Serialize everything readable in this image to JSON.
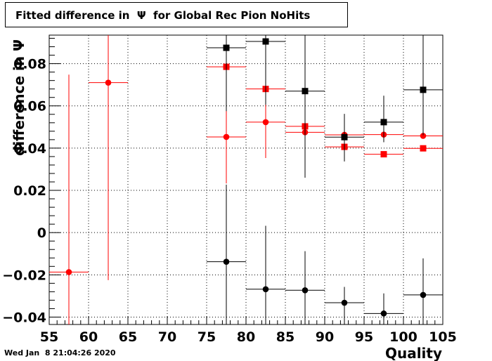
{
  "chart_data": {
    "type": "scatter",
    "title": "Fitted difference in  Ψ  for Global Rec Pion NoHits",
    "xlabel": "Quality",
    "ylabel": "difference in  Ψ",
    "xlim": [
      55,
      105
    ],
    "ylim": [
      -0.0435,
      0.0935
    ],
    "x_ticks": [
      55,
      60,
      65,
      70,
      75,
      80,
      85,
      90,
      95,
      100,
      105
    ],
    "x_tick_labels": [
      "55",
      "60",
      "65",
      "70",
      "75",
      "80",
      "85",
      "90",
      "95",
      "100",
      "105"
    ],
    "y_ticks": [
      -0.04,
      -0.02,
      0,
      0.02,
      0.04,
      0.06,
      0.08
    ],
    "y_tick_labels": [
      "−0.04",
      "−0.02",
      "0",
      "0.02",
      "0.04",
      "0.06",
      "0.08"
    ],
    "grid": true,
    "series": [
      {
        "color": "#ff0000",
        "marker": "circle",
        "points": [
          {
            "x": 57.5,
            "y": -0.0187,
            "yerr_low": 0.0935,
            "yerr_high": 0.0935
          },
          {
            "x": 62.5,
            "y": 0.071,
            "yerr_low": 0.0935,
            "yerr_high": 0.0935
          },
          {
            "x": 77.5,
            "y": 0.0453,
            "yerr_low": 0.022,
            "yerr_high": 0.048
          },
          {
            "x": 82.5,
            "y": 0.0523,
            "yerr_low": 0.017,
            "yerr_high": 0.012
          },
          {
            "x": 87.5,
            "y": 0.0475,
            "yerr_low": 0.003,
            "yerr_high": 0.003
          },
          {
            "x": 92.5,
            "y": 0.0463,
            "yerr_low": 0.002,
            "yerr_high": 0.002
          },
          {
            "x": 97.5,
            "y": 0.0464,
            "yerr_low": 0.001,
            "yerr_high": 0.001
          },
          {
            "x": 102.5,
            "y": 0.0458,
            "yerr_low": 0.001,
            "yerr_high": 0.001
          }
        ]
      },
      {
        "color": "#ff0000",
        "marker": "square",
        "points": [
          {
            "x": 77.5,
            "y": 0.0785,
            "yerr_low": 0.003,
            "yerr_high": 0.003
          },
          {
            "x": 82.5,
            "y": 0.068,
            "yerr_low": 0.009,
            "yerr_high": 0.017
          },
          {
            "x": 87.5,
            "y": 0.0503,
            "yerr_low": 0.003,
            "yerr_high": 0.003
          },
          {
            "x": 92.5,
            "y": 0.0406,
            "yerr_low": 0.002,
            "yerr_high": 0.002
          },
          {
            "x": 97.5,
            "y": 0.0371,
            "yerr_low": 0.001,
            "yerr_high": 0.001
          },
          {
            "x": 102.5,
            "y": 0.0399,
            "yerr_low": 0.001,
            "yerr_high": 0.001
          }
        ]
      },
      {
        "color": "#000000",
        "marker": "square",
        "points": [
          {
            "x": 77.5,
            "y": 0.0875,
            "yerr_low": 0.03,
            "yerr_high": 0.03
          },
          {
            "x": 82.5,
            "y": 0.0905,
            "yerr_low": 0.03,
            "yerr_high": 0.03
          },
          {
            "x": 87.5,
            "y": 0.067,
            "yerr_low": 0.041,
            "yerr_high": 0.03
          },
          {
            "x": 92.5,
            "y": 0.0452,
            "yerr_low": 0.0115,
            "yerr_high": 0.011
          },
          {
            "x": 97.5,
            "y": 0.0523,
            "yerr_low": 0.0095,
            "yerr_high": 0.0125
          },
          {
            "x": 102.5,
            "y": 0.0676,
            "yerr_low": 0.0215,
            "yerr_high": 0.03
          }
        ]
      },
      {
        "color": "#000000",
        "marker": "circle",
        "points": [
          {
            "x": 77.5,
            "y": -0.0138,
            "yerr_low": 0.03,
            "yerr_high": 0.0365
          },
          {
            "x": 82.5,
            "y": -0.0268,
            "yerr_low": 0.017,
            "yerr_high": 0.03
          },
          {
            "x": 87.5,
            "y": -0.0273,
            "yerr_low": 0.017,
            "yerr_high": 0.0185
          },
          {
            "x": 92.5,
            "y": -0.0332,
            "yerr_low": 0.0104,
            "yerr_high": 0.0075
          },
          {
            "x": 97.5,
            "y": -0.0383,
            "yerr_low": 0.0052,
            "yerr_high": 0.0095
          },
          {
            "x": 102.5,
            "y": -0.0295,
            "yerr_low": 0.014,
            "yerr_high": 0.0173
          }
        ]
      }
    ]
  },
  "footer": {
    "timestamp": "Wed Jan  8 21:04:26 2020"
  }
}
